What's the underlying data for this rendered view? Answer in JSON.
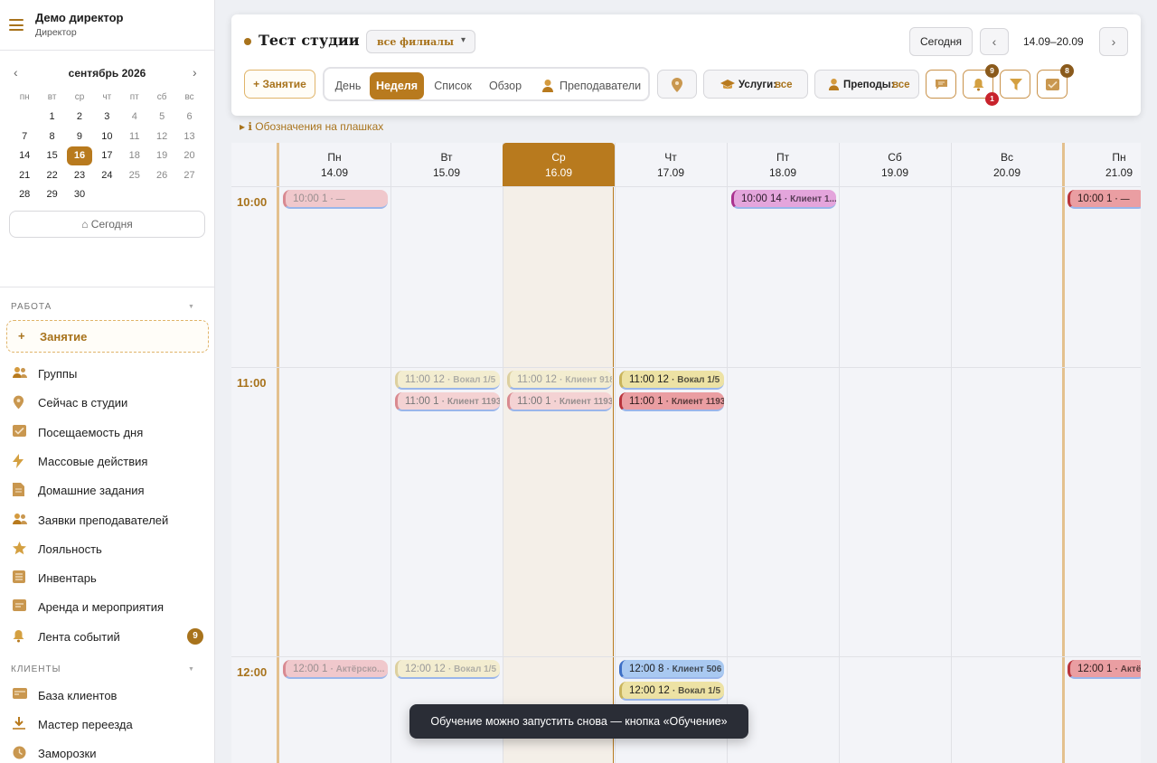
{
  "sidebar": {
    "user_name": "Демо директор",
    "user_role": "Директор",
    "calendar": {
      "month_label": "сентябрь",
      "year": "2026",
      "prev_icon": "‹",
      "next_icon": "›",
      "dow": [
        "пн",
        "вт",
        "ср",
        "чт",
        "пт",
        "сб",
        "вс"
      ],
      "days": [
        "",
        "1",
        "2",
        "3",
        "4",
        "5",
        "6",
        "7",
        "8",
        "9",
        "10",
        "11",
        "12",
        "13",
        "14",
        "15",
        "16",
        "17",
        "18",
        "19",
        "20",
        "21",
        "22",
        "23",
        "24",
        "25",
        "26",
        "27",
        "28",
        "29",
        "30"
      ],
      "selected_day": "16"
    },
    "today_button": "⌂ Сегодня",
    "section_work": "РАБОТА",
    "add_lesson": {
      "icon": "+",
      "label": "Занятие"
    },
    "work_items": [
      {
        "label": "Группы",
        "icon": "people-icon"
      },
      {
        "label": "Сейчас в студии",
        "icon": "location-pin-icon"
      },
      {
        "label": "Посещаемость дня",
        "icon": "checkbox-icon"
      },
      {
        "label": "Массовые действия",
        "icon": "lightning-icon"
      },
      {
        "label": "Домашние задания",
        "icon": "document-icon"
      },
      {
        "label": "Заявки преподавателей",
        "icon": "people-icon"
      },
      {
        "label": "Лояльность",
        "icon": "star-icon"
      },
      {
        "label": "Инвентарь",
        "icon": "list-icon"
      },
      {
        "label": "Аренда и мероприятия",
        "icon": "ticket-icon"
      },
      {
        "label": "Лента событий",
        "icon": "bell-icon",
        "count": "9"
      }
    ],
    "section_clients": "КЛИЕНТЫ",
    "client_items": [
      {
        "label": "База клиентов",
        "icon": "card-icon"
      },
      {
        "label": "Мастер переезда",
        "icon": "download-icon"
      },
      {
        "label": "Заморозки",
        "icon": "clock-icon"
      }
    ]
  },
  "toolbar": {
    "studio_title": "Тест студии",
    "branch_value": "все филиалы",
    "today_button": "Сегодня",
    "prev": "‹",
    "next": "›",
    "range": "14.09–20.09",
    "add_lesson": "+ Занятие",
    "view_tabs": [
      "День",
      "Неделя",
      "Список",
      "Обзор",
      "Преподаватели"
    ],
    "active_view": "Неделя",
    "services_label": "Услуги:",
    "services_value": "все",
    "teachers_label": "Преподы:",
    "teachers_value": "все",
    "bell_count": "9",
    "bell_alert": "1",
    "tasks_count": "8"
  },
  "legend_toggle": "▸ ℹ Обозначения на плашках",
  "days": [
    {
      "dow": "Пн",
      "date": "14.09"
    },
    {
      "dow": "Вт",
      "date": "15.09"
    },
    {
      "dow": "Ср",
      "date": "16.09",
      "today": true
    },
    {
      "dow": "Чт",
      "date": "17.09"
    },
    {
      "dow": "Пт",
      "date": "18.09"
    },
    {
      "dow": "Сб",
      "date": "19.09"
    },
    {
      "dow": "Вс",
      "date": "20.09"
    },
    {
      "dow": "Пн",
      "date": "21.09"
    }
  ],
  "hours": [
    "10:00",
    "11:00",
    "12:00"
  ],
  "events": [
    {
      "day": 0,
      "hour": 0,
      "slot": 0,
      "time": "10:00 1",
      "sub": "· —",
      "color": "pink"
    },
    {
      "day": 4,
      "hour": 0,
      "slot": 0,
      "time": "10:00 14",
      "sub": "· Клиент 1...",
      "color": "magenta"
    },
    {
      "day": 7,
      "hour": 0,
      "slot": 0,
      "time": "10:00 1",
      "sub": "· —",
      "color": "red"
    },
    {
      "day": 1,
      "hour": 1,
      "slot": 0,
      "time": "11:00 12",
      "sub": "· Вокал 1/5",
      "color": "yellowf"
    },
    {
      "day": 1,
      "hour": 1,
      "slot": 1,
      "time": "11:00 1",
      "sub": "· Клиент 1193",
      "color": "redf"
    },
    {
      "day": 2,
      "hour": 1,
      "slot": 0,
      "time": "11:00 12",
      "sub": "· Клиент 918",
      "color": "yellowf"
    },
    {
      "day": 2,
      "hour": 1,
      "slot": 1,
      "time": "11:00 1",
      "sub": "· Клиент 1193",
      "color": "redf"
    },
    {
      "day": 3,
      "hour": 1,
      "slot": 0,
      "time": "11:00 12",
      "sub": "· Вокал 1/5",
      "color": "yellow"
    },
    {
      "day": 3,
      "hour": 1,
      "slot": 1,
      "time": "11:00 1",
      "sub": "· Клиент 1193",
      "color": "red"
    },
    {
      "day": 0,
      "hour": 2,
      "slot": 0,
      "time": "12:00 1",
      "sub": "· Актёрско...",
      "color": "pink"
    },
    {
      "day": 1,
      "hour": 2,
      "slot": 0,
      "time": "12:00 12",
      "sub": "· Вокал 1/5",
      "color": "yellowf"
    },
    {
      "day": 3,
      "hour": 2,
      "slot": 0,
      "time": "12:00 8",
      "sub": "· Клиент 506",
      "color": "blue"
    },
    {
      "day": 3,
      "hour": 2,
      "slot": 1,
      "time": "12:00 12",
      "sub": "· Вокал 1/5",
      "color": "yellow"
    },
    {
      "day": 7,
      "hour": 2,
      "slot": 0,
      "time": "12:00 1",
      "sub": "· Актёр",
      "color": "red"
    }
  ],
  "toast": "Обучение можно запустить снова — кнопка «Обучение»"
}
